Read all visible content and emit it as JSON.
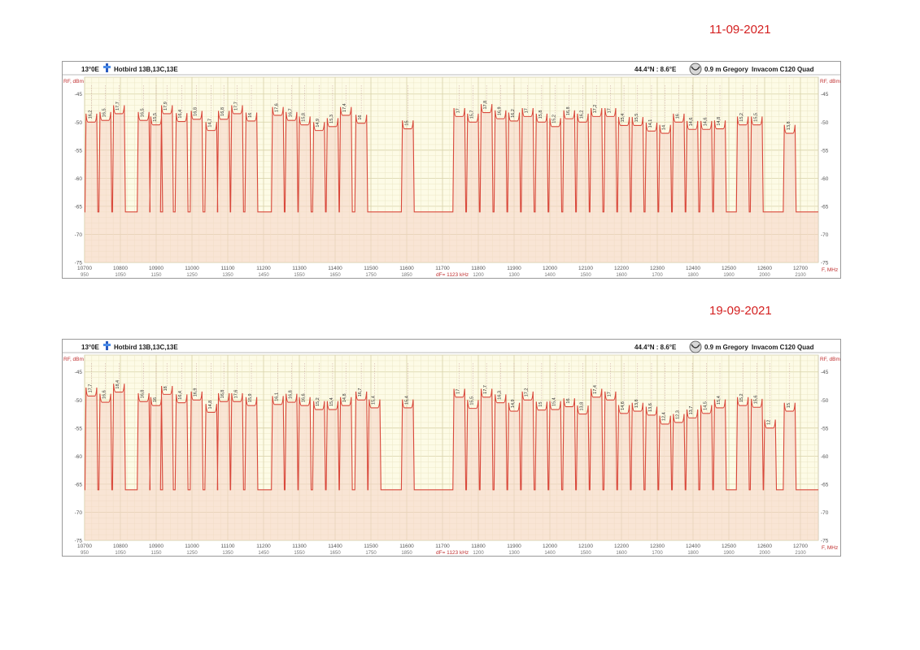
{
  "dates": [
    "11-09-2021",
    "19-09-2021"
  ],
  "chart_data": [
    {
      "type": "area",
      "date": "11-09-2021",
      "header": {
        "position": "13°0E",
        "satellite": "Hotbird 13B,13C,13E",
        "location": "44.4°N : 8.6°E",
        "dish": "0.9 m Gregory",
        "lnb": "Invacom C120 Quad"
      },
      "ylabel": "RF, dBm",
      "xlabel": "F, MHz",
      "footer": "dF= 1123 kHz",
      "ylim": [
        -75,
        -42
      ],
      "yticks": [
        -45,
        -50,
        -55,
        -60,
        -65,
        -70,
        -75
      ],
      "xlim": [
        10700,
        12750
      ],
      "xticks": [
        10700,
        10800,
        10900,
        11000,
        11100,
        11200,
        11300,
        11400,
        11500,
        11600,
        11700,
        11800,
        11900,
        12000,
        12100,
        12200,
        12300,
        12400,
        12500,
        12600,
        12700
      ],
      "if_ticks": [
        "950",
        "1050",
        "1150",
        "1250",
        "1350",
        "1450",
        "1550",
        "1650",
        "1750",
        "1850",
        "",
        "1200",
        "1300",
        "1400",
        "1500",
        "1600",
        "1700",
        "1800",
        "1900",
        "2000",
        "2100"
      ],
      "floor": -66,
      "peaks": [
        {
          "f": 10719,
          "bw": 30,
          "level": -50.0,
          "cn": "16,2"
        },
        {
          "f": 10758,
          "bw": 30,
          "level": -49.7,
          "cn": "16,5"
        },
        {
          "f": 10796,
          "bw": 30,
          "level": -48.5,
          "cn": "17,7"
        },
        {
          "f": 10865,
          "bw": 30,
          "level": -49.7,
          "cn": "16,5"
        },
        {
          "f": 10900,
          "bw": 30,
          "level": -50.5,
          "cn": "15,5"
        },
        {
          "f": 10930,
          "bw": 30,
          "level": -48.5,
          "cn": "17,9"
        },
        {
          "f": 10971,
          "bw": 30,
          "level": -49.9,
          "cn": "16,4"
        },
        {
          "f": 11013,
          "bw": 30,
          "level": -49.5,
          "cn": "16,8"
        },
        {
          "f": 11054,
          "bw": 30,
          "level": -51.5,
          "cn": "14,7"
        },
        {
          "f": 11089,
          "bw": 30,
          "level": -49.5,
          "cn": "16,8"
        },
        {
          "f": 11126,
          "bw": 30,
          "level": -48.5,
          "cn": "17,7"
        },
        {
          "f": 11166,
          "bw": 30,
          "level": -49.8,
          "cn": "16"
        },
        {
          "f": 11240,
          "bw": 30,
          "level": -48.8,
          "cn": "17,6"
        },
        {
          "f": 11278,
          "bw": 30,
          "level": -49.7,
          "cn": "16,7"
        },
        {
          "f": 11315,
          "bw": 30,
          "level": -50.5,
          "cn": "15,8"
        },
        {
          "f": 11355,
          "bw": 30,
          "level": -51.5,
          "cn": "14,9"
        },
        {
          "f": 11393,
          "bw": 30,
          "level": -50.8,
          "cn": "15,3"
        },
        {
          "f": 11430,
          "bw": 30,
          "level": -48.8,
          "cn": "17,4"
        },
        {
          "f": 11473,
          "bw": 30,
          "level": -50.2,
          "cn": "16"
        },
        {
          "f": 11603,
          "bw": 30,
          "level": -51.2,
          "cn": "15"
        },
        {
          "f": 11747,
          "bw": 30,
          "level": -49.0,
          "cn": "17"
        },
        {
          "f": 11785,
          "bw": 30,
          "level": -50.0,
          "cn": "15,7"
        },
        {
          "f": 11823,
          "bw": 30,
          "level": -48.3,
          "cn": "17,8"
        },
        {
          "f": 11862,
          "bw": 30,
          "level": -49.4,
          "cn": "16,9"
        },
        {
          "f": 11900,
          "bw": 30,
          "level": -49.8,
          "cn": "16,2"
        },
        {
          "f": 11938,
          "bw": 30,
          "level": -49.0,
          "cn": "17"
        },
        {
          "f": 11977,
          "bw": 30,
          "level": -50.0,
          "cn": "15,8"
        },
        {
          "f": 12015,
          "bw": 30,
          "level": -50.8,
          "cn": "15,2"
        },
        {
          "f": 12054,
          "bw": 30,
          "level": -49.4,
          "cn": "16,8"
        },
        {
          "f": 12092,
          "bw": 30,
          "level": -50.0,
          "cn": "16,2"
        },
        {
          "f": 12130,
          "bw": 30,
          "level": -49.0,
          "cn": "17,2"
        },
        {
          "f": 12169,
          "bw": 30,
          "level": -49.0,
          "cn": "17"
        },
        {
          "f": 12207,
          "bw": 30,
          "level": -50.6,
          "cn": "15,4"
        },
        {
          "f": 12245,
          "bw": 30,
          "level": -50.6,
          "cn": "15,5"
        },
        {
          "f": 12284,
          "bw": 30,
          "level": -51.6,
          "cn": "14,1"
        },
        {
          "f": 12322,
          "bw": 30,
          "level": -52.0,
          "cn": "14"
        },
        {
          "f": 12360,
          "bw": 30,
          "level": -50.0,
          "cn": "16"
        },
        {
          "f": 12398,
          "bw": 30,
          "level": -51.3,
          "cn": "14,6"
        },
        {
          "f": 12437,
          "bw": 30,
          "level": -51.3,
          "cn": "14,6"
        },
        {
          "f": 12475,
          "bw": 30,
          "level": -51.2,
          "cn": "14,8"
        },
        {
          "f": 12539,
          "bw": 30,
          "level": -50.5,
          "cn": "15,2"
        },
        {
          "f": 12578,
          "bw": 30,
          "level": -50.5,
          "cn": "15,5"
        },
        {
          "f": 12670,
          "bw": 30,
          "level": -52.0,
          "cn": "13,8"
        }
      ]
    },
    {
      "type": "area",
      "date": "19-09-2021",
      "header": {
        "position": "13°0E",
        "satellite": "Hotbird 13B,13C,13E",
        "location": "44.4°N : 8.6°E",
        "dish": "0.9 m Gregory",
        "lnb": "Invacom C120 Quad"
      },
      "ylabel": "RF, dBm",
      "xlabel": "F, MHz",
      "footer": "dF= 1123 kHz",
      "ylim": [
        -75,
        -42
      ],
      "yticks": [
        -45,
        -50,
        -55,
        -60,
        -65,
        -70,
        -75
      ],
      "xlim": [
        10700,
        12750
      ],
      "xticks": [
        10700,
        10800,
        10900,
        11000,
        11100,
        11200,
        11300,
        11400,
        11500,
        11600,
        11700,
        11800,
        11900,
        12000,
        12100,
        12200,
        12300,
        12400,
        12500,
        12600,
        12700
      ],
      "if_ticks": [
        "950",
        "1050",
        "1150",
        "1250",
        "1350",
        "1450",
        "1550",
        "1650",
        "1750",
        "1850",
        "",
        "1200",
        "1300",
        "1400",
        "1500",
        "1600",
        "1700",
        "1800",
        "1900",
        "2000",
        "2100"
      ],
      "floor": -66,
      "peaks": [
        {
          "f": 10719,
          "bw": 30,
          "level": -49.3,
          "cn": "17,7"
        },
        {
          "f": 10758,
          "bw": 30,
          "level": -50.4,
          "cn": "16,6"
        },
        {
          "f": 10796,
          "bw": 30,
          "level": -48.6,
          "cn": "18,4"
        },
        {
          "f": 10865,
          "bw": 30,
          "level": -50.3,
          "cn": "16,8"
        },
        {
          "f": 10900,
          "bw": 30,
          "level": -51.0,
          "cn": "16"
        },
        {
          "f": 10930,
          "bw": 30,
          "level": -49.0,
          "cn": "18"
        },
        {
          "f": 10971,
          "bw": 30,
          "level": -50.5,
          "cn": "16,4"
        },
        {
          "f": 11013,
          "bw": 30,
          "level": -50.0,
          "cn": "16,9"
        },
        {
          "f": 11054,
          "bw": 30,
          "level": -52.2,
          "cn": "14,8"
        },
        {
          "f": 11089,
          "bw": 30,
          "level": -50.3,
          "cn": "16,8"
        },
        {
          "f": 11126,
          "bw": 30,
          "level": -50.3,
          "cn": "17,6"
        },
        {
          "f": 11166,
          "bw": 30,
          "level": -51.0,
          "cn": "15,9"
        },
        {
          "f": 11240,
          "bw": 30,
          "level": -50.8,
          "cn": "16,1"
        },
        {
          "f": 11278,
          "bw": 30,
          "level": -50.4,
          "cn": "16,8"
        },
        {
          "f": 11315,
          "bw": 30,
          "level": -51.0,
          "cn": "16,6"
        },
        {
          "f": 11355,
          "bw": 30,
          "level": -51.7,
          "cn": "15,2"
        },
        {
          "f": 11393,
          "bw": 30,
          "level": -51.7,
          "cn": "15,4"
        },
        {
          "f": 11430,
          "bw": 30,
          "level": -51.0,
          "cn": "14,8"
        },
        {
          "f": 11473,
          "bw": 30,
          "level": -50.0,
          "cn": "16,7"
        },
        {
          "f": 11510,
          "bw": 30,
          "level": -51.4,
          "cn": "15,4"
        },
        {
          "f": 11603,
          "bw": 30,
          "level": -51.4,
          "cn": "15,4"
        },
        {
          "f": 11747,
          "bw": 30,
          "level": -49.5,
          "cn": "17"
        },
        {
          "f": 11785,
          "bw": 30,
          "level": -51.5,
          "cn": "15,5"
        },
        {
          "f": 11823,
          "bw": 30,
          "level": -49.5,
          "cn": "17,7"
        },
        {
          "f": 11862,
          "bw": 30,
          "level": -50.5,
          "cn": "16,3"
        },
        {
          "f": 11900,
          "bw": 30,
          "level": -52.0,
          "cn": "14,9"
        },
        {
          "f": 11938,
          "bw": 30,
          "level": -50.0,
          "cn": "17,2"
        },
        {
          "f": 11977,
          "bw": 30,
          "level": -51.8,
          "cn": "15"
        },
        {
          "f": 12015,
          "bw": 30,
          "level": -51.7,
          "cn": "15,4"
        },
        {
          "f": 12054,
          "bw": 30,
          "level": -51.2,
          "cn": "16"
        },
        {
          "f": 12092,
          "bw": 30,
          "level": -52.5,
          "cn": "13,8"
        },
        {
          "f": 12130,
          "bw": 30,
          "level": -49.5,
          "cn": "17,4"
        },
        {
          "f": 12169,
          "bw": 30,
          "level": -50.0,
          "cn": "17"
        },
        {
          "f": 12207,
          "bw": 30,
          "level": -52.4,
          "cn": "14,6"
        },
        {
          "f": 12245,
          "bw": 30,
          "level": -52.0,
          "cn": "13,8"
        },
        {
          "f": 12284,
          "bw": 30,
          "level": -52.7,
          "cn": "13,6"
        },
        {
          "f": 12322,
          "bw": 30,
          "level": -54.3,
          "cn": "12,4"
        },
        {
          "f": 12360,
          "bw": 30,
          "level": -54.0,
          "cn": "12,3"
        },
        {
          "f": 12398,
          "bw": 30,
          "level": -53.2,
          "cn": "13,7"
        },
        {
          "f": 12437,
          "bw": 30,
          "level": -52.4,
          "cn": "14,5"
        },
        {
          "f": 12475,
          "bw": 30,
          "level": -51.4,
          "cn": "15,4"
        },
        {
          "f": 12539,
          "bw": 30,
          "level": -51.0,
          "cn": "15,2"
        },
        {
          "f": 12578,
          "bw": 30,
          "level": -51.3,
          "cn": "15,6"
        },
        {
          "f": 12615,
          "bw": 30,
          "level": -55.0,
          "cn": "12"
        },
        {
          "f": 12670,
          "bw": 30,
          "level": -52.0,
          "cn": "15"
        }
      ]
    }
  ]
}
